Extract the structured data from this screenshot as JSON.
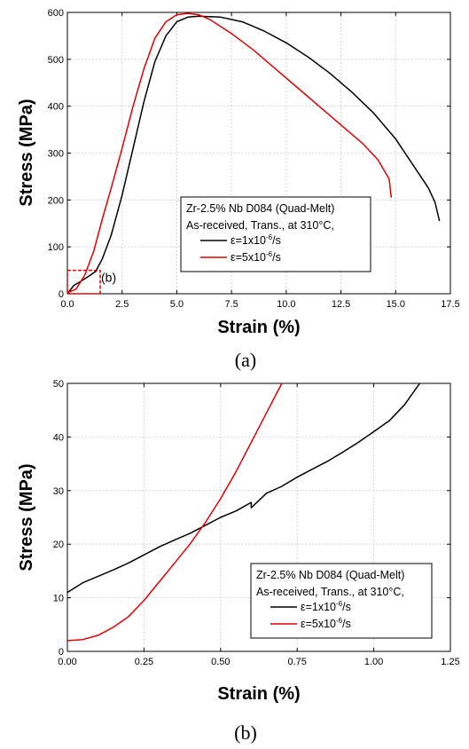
{
  "chart_data": [
    {
      "id": "a",
      "type": "line",
      "caption": "(a)",
      "xlabel": "Strain (%)",
      "ylabel": "Stress (MPa)",
      "xlim": [
        0,
        17.5
      ],
      "ylim": [
        0,
        600
      ],
      "xticks": [
        "0.0",
        "2.5",
        "5.0",
        "7.5",
        "10.0",
        "12.5",
        "15.0",
        "17.5"
      ],
      "yticks": [
        "0",
        "100",
        "200",
        "300",
        "400",
        "500",
        "600"
      ],
      "grid": true,
      "legend": {
        "position": "lower-right",
        "title_lines": [
          "Zr-2.5% Nb D084 (Quad-Melt)",
          "As-received, Trans., at 310°C,"
        ],
        "entries": [
          {
            "prefix": "ε=1x10",
            "exp": "-6",
            "suffix": "/s",
            "color": "#000000"
          },
          {
            "prefix": "ε=5x10",
            "exp": "-6",
            "suffix": "/s",
            "color": "#e00000"
          }
        ]
      },
      "annotation": {
        "label": "(b)",
        "box_x": [
          0,
          1.5
        ],
        "box_y": [
          0,
          50
        ],
        "color": "#e00000"
      },
      "series": [
        {
          "color": "#000000",
          "x": [
            0,
            0.3,
            0.6,
            1.0,
            1.3,
            1.6,
            2.0,
            2.5,
            3.0,
            3.5,
            4.0,
            4.5,
            5.0,
            5.5,
            6.0,
            7.0,
            8.0,
            9.0,
            10.0,
            11.0,
            12.0,
            13.0,
            14.0,
            15.0,
            15.5,
            16.0,
            16.5,
            16.8,
            17.0
          ],
          "y": [
            0,
            18,
            26,
            38,
            48,
            75,
            125,
            210,
            310,
            410,
            495,
            550,
            580,
            590,
            592,
            590,
            580,
            560,
            535,
            505,
            470,
            430,
            385,
            330,
            295,
            260,
            225,
            195,
            155
          ]
        },
        {
          "color": "#e00000",
          "x": [
            0,
            0.4,
            0.8,
            1.2,
            1.6,
            2.0,
            2.5,
            3.0,
            3.5,
            4.0,
            4.5,
            5.0,
            5.5,
            6.0,
            6.5,
            7.5,
            8.5,
            9.5,
            10.5,
            11.5,
            12.5,
            13.5,
            14.2,
            14.7,
            14.8
          ],
          "y": [
            2,
            10,
            40,
            90,
            160,
            225,
            310,
            400,
            480,
            545,
            580,
            595,
            598,
            595,
            585,
            555,
            520,
            480,
            440,
            400,
            360,
            320,
            285,
            245,
            205
          ]
        }
      ]
    },
    {
      "id": "b",
      "type": "line",
      "caption": "(b)",
      "xlabel": "Strain (%)",
      "ylabel": "Stress (MPa)",
      "xlim": [
        0,
        1.25
      ],
      "ylim": [
        0,
        50
      ],
      "xticks": [
        "0.00",
        "0.25",
        "0.50",
        "0.75",
        "1.00",
        "1.25"
      ],
      "yticks": [
        "0",
        "10",
        "20",
        "30",
        "40",
        "50"
      ],
      "grid": true,
      "legend": {
        "position": "lower-right",
        "title_lines": [
          "Zr-2.5% Nb D084 (Quad-Melt)",
          "As-received, Trans., at 310°C,"
        ],
        "entries": [
          {
            "prefix": "ε=1x10",
            "exp": "-6",
            "suffix": "/s",
            "color": "#000000"
          },
          {
            "prefix": "ε=5x10",
            "exp": "-6",
            "suffix": "/s",
            "color": "#e00000"
          }
        ]
      },
      "series": [
        {
          "color": "#000000",
          "x": [
            0,
            0.05,
            0.1,
            0.15,
            0.2,
            0.25,
            0.3,
            0.35,
            0.4,
            0.45,
            0.5,
            0.55,
            0.6,
            0.6,
            0.65,
            0.7,
            0.75,
            0.8,
            0.85,
            0.9,
            0.95,
            1.0,
            1.05,
            1.1,
            1.15
          ],
          "y": [
            11,
            12.8,
            14,
            15.2,
            16.5,
            18,
            19.5,
            20.8,
            22,
            23.5,
            25,
            26.2,
            27.8,
            26.8,
            29.5,
            30.8,
            32.5,
            34,
            35.5,
            37.2,
            39,
            41,
            43,
            46,
            50
          ]
        },
        {
          "color": "#e00000",
          "x": [
            0,
            0.05,
            0.1,
            0.15,
            0.2,
            0.25,
            0.3,
            0.35,
            0.4,
            0.45,
            0.5,
            0.55,
            0.6,
            0.65,
            0.7
          ],
          "y": [
            2,
            2.2,
            3,
            4.5,
            6.5,
            9.5,
            13,
            16.5,
            20,
            24,
            28.5,
            33.5,
            39,
            44.5,
            50
          ]
        }
      ]
    }
  ]
}
